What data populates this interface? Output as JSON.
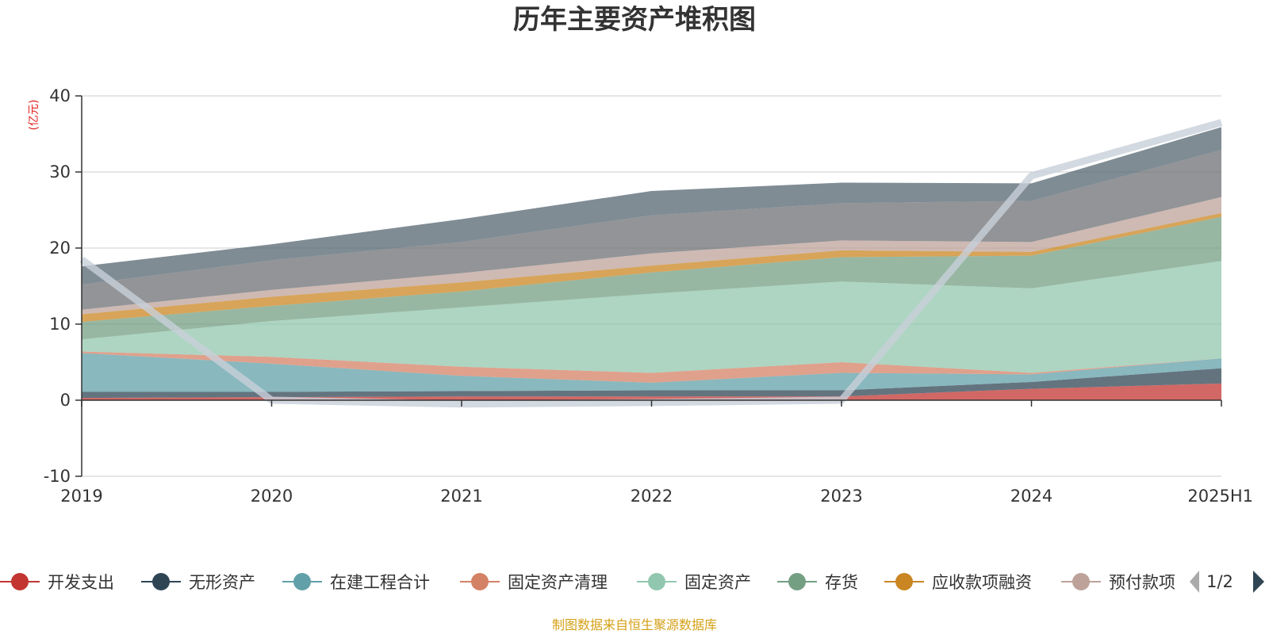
{
  "chart_data": {
    "type": "area",
    "stacked": true,
    "title": "历年主要资产堆积图",
    "ylabel": "(亿元)",
    "categories": [
      "2019",
      "2020",
      "2021",
      "2022",
      "2023",
      "2024",
      "2025H1"
    ],
    "ylim": [
      -10,
      40
    ],
    "yticks": [
      "-10",
      "0",
      "10",
      "20",
      "30",
      "40"
    ],
    "grid": true,
    "series": [
      {
        "name": "开发支出",
        "color": "#c23531",
        "values": [
          0.3,
          0.4,
          0.5,
          0.5,
          0.5,
          1.5,
          2.2
        ]
      },
      {
        "name": "无形资产",
        "color": "#2f4554",
        "values": [
          0.8,
          0.7,
          0.7,
          0.8,
          0.8,
          0.9,
          2.0
        ]
      },
      {
        "name": "在建工程合计",
        "color": "#61a0a8",
        "values": [
          5.1,
          3.7,
          2.0,
          1.0,
          2.3,
          1.0,
          1.3
        ]
      },
      {
        "name": "固定资产清理",
        "color": "#d48265",
        "values": [
          0.2,
          0.9,
          1.2,
          1.3,
          1.4,
          0.2,
          0.0
        ]
      },
      {
        "name": "固定资产",
        "color": "#91c7ae",
        "values": [
          1.6,
          4.7,
          7.8,
          10.4,
          10.6,
          11.1,
          12.8
        ]
      },
      {
        "name": "存货",
        "color": "#749f83",
        "values": [
          2.3,
          2.0,
          2.1,
          2.8,
          3.2,
          4.3,
          5.8
        ]
      },
      {
        "name": "应收款项融资",
        "color": "#ca8622",
        "values": [
          1.0,
          1.2,
          1.2,
          0.9,
          0.9,
          0.5,
          0.5
        ]
      },
      {
        "name": "预付款项",
        "color": "#bda29a",
        "values": [
          0.6,
          0.9,
          1.2,
          1.6,
          1.3,
          1.3,
          2.1
        ]
      },
      {
        "name": "",
        "color": "#6e7074",
        "values": [
          3.3,
          3.9,
          4.1,
          5.0,
          4.9,
          5.4,
          6.2
        ]
      },
      {
        "name": "",
        "color": "#546570",
        "values": [
          2.4,
          2.1,
          3.0,
          3.2,
          2.7,
          2.3,
          3.0
        ]
      }
    ],
    "overlay_line": {
      "name": "",
      "color": "#c8d0da",
      "values": [
        18.5,
        0.0,
        -0.5,
        -0.3,
        0.0,
        29.5,
        36.5
      ]
    },
    "legend": {
      "placement": "bottom",
      "page": "1/2"
    }
  },
  "footer": {
    "source": "制图数据来自恒生聚源数据库"
  }
}
